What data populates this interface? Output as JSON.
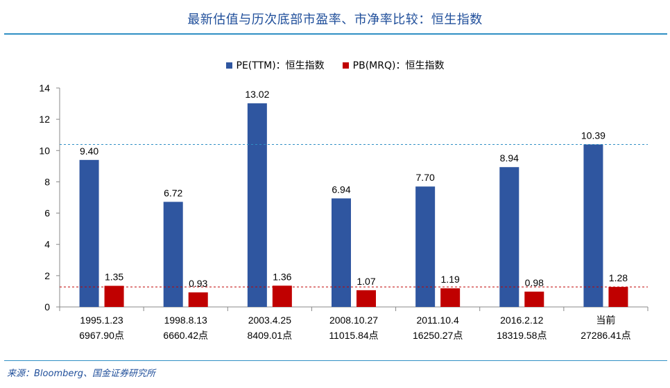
{
  "page": {
    "title": "最新估值与历次底部市盈率、市净率比较：恒生指数",
    "source": "来源：Bloomberg、国金证券研究所"
  },
  "colors": {
    "pe": "#2f56a0",
    "pb": "#c00000",
    "pe_ref_line": "#2f8fc4",
    "pb_ref_line": "#c00000",
    "axis": "#888888",
    "rule": "#2f8fc4"
  },
  "chart_data": {
    "type": "bar",
    "categories": [
      [
        "1995.1.23",
        "6967.90点"
      ],
      [
        "1998.8.13",
        "6660.42点"
      ],
      [
        "2003.4.25",
        "8409.01点"
      ],
      [
        "2008.10.27",
        "11015.84点"
      ],
      [
        "2011.10.4",
        "16250.27点"
      ],
      [
        "2016.2.12",
        "18319.58点"
      ],
      [
        "当前",
        "27286.41点"
      ]
    ],
    "series": [
      {
        "name": "PE(TTM)：恒生指数",
        "values": [
          9.4,
          6.72,
          13.02,
          6.94,
          7.7,
          8.94,
          10.39
        ]
      },
      {
        "name": "PB(MRQ)：恒生指数",
        "values": [
          1.35,
          0.93,
          1.36,
          1.07,
          1.19,
          0.98,
          1.28
        ]
      }
    ],
    "data_labels": [
      [
        "9.40",
        "6.72",
        "13.02",
        "6.94",
        "7.70",
        "8.94",
        "10.39"
      ],
      [
        "1.35",
        "0.93",
        "1.36",
        "1.07",
        "1.19",
        "0.98",
        "1.28"
      ]
    ],
    "ylim": [
      0,
      14
    ],
    "yticks": [
      0,
      2,
      4,
      6,
      8,
      10,
      12,
      14
    ],
    "reference_lines": [
      {
        "series": "PE(TTM)：恒生指数",
        "value": 10.39,
        "style": "dashed"
      },
      {
        "series": "PB(MRQ)：恒生指数",
        "value": 1.28,
        "style": "dashed"
      }
    ],
    "grid": false,
    "legend": "top-center",
    "title": "",
    "xlabel": "",
    "ylabel": ""
  }
}
